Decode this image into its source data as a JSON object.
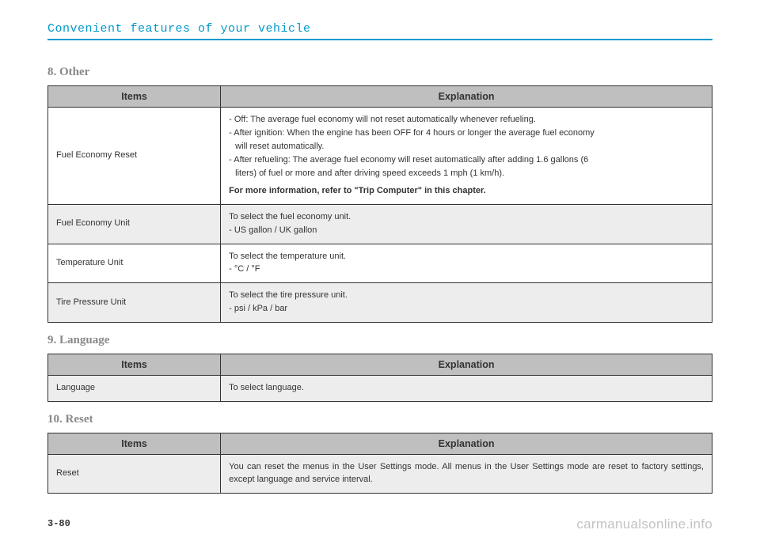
{
  "header": {
    "title": "Convenient features of your vehicle"
  },
  "page_number": "3-80",
  "watermark": "carmanualsonline.info",
  "tables": {
    "other": {
      "section_title": "8. Other",
      "col_items": "Items",
      "col_explanation": "Explanation",
      "rows": [
        {
          "item": "Fuel Economy Reset",
          "lines": [
            "- Off: The average fuel economy will not reset automatically whenever refueling.",
            "- After ignition: When the engine has been OFF for 4 hours or longer the average fuel economy",
            "will reset automatically.",
            "- After refueling: The average fuel economy will reset automatically after adding 1.6 gallons (6",
            "liters) of fuel or more and after driving speed exceeds 1 mph (1 km/h)."
          ],
          "bold_line": "For more information, refer to \"Trip Computer\" in this chapter."
        },
        {
          "item": "Fuel Economy Unit",
          "lines": [
            "To select the fuel economy unit.",
            "- US gallon / UK gallon"
          ]
        },
        {
          "item": "Temperature Unit",
          "lines": [
            "To select the temperature unit.",
            "- °C / °F"
          ]
        },
        {
          "item": "Tire Pressure Unit",
          "lines": [
            "To select the tire pressure unit.",
            "- psi / kPa / bar"
          ]
        }
      ]
    },
    "language": {
      "section_title": "9. Language",
      "col_items": "Items",
      "col_explanation": "Explanation",
      "rows": [
        {
          "item": "Language",
          "lines": [
            "To select language."
          ]
        }
      ]
    },
    "reset": {
      "section_title": "10. Reset",
      "col_items": "Items",
      "col_explanation": "Explanation",
      "rows": [
        {
          "item": "Reset",
          "lines": [
            "You can reset the menus in the User Settings mode. All menus in the User Settings mode are reset to factory settings, except language and service interval."
          ]
        }
      ]
    }
  },
  "styling": {
    "header_color": "#0099cc",
    "header_border_color": "#0099cc",
    "section_title_color": "#888888",
    "table_border_color": "#333333",
    "th_bg": "#bfbfbf",
    "row_alt_bg": "#ededed",
    "body_bg": "#ffffff",
    "watermark_color": "rgba(120,120,120,0.45)",
    "font_size_body": 11,
    "font_size_th": 12.5,
    "font_size_section": 15,
    "font_size_header": 15
  }
}
